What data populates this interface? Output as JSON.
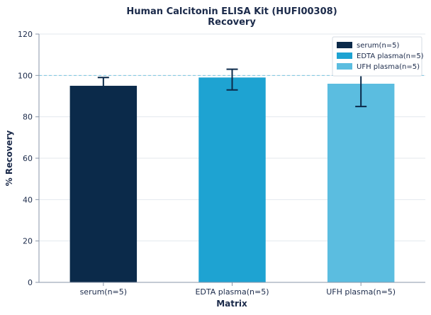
{
  "chart_data": {
    "type": "bar",
    "title": "Human Calcitonin ELISA Kit (HUFI00308)",
    "subtitle": "Recovery",
    "xlabel": "Matrix",
    "ylabel": "% Recovery",
    "ylim": [
      0,
      120
    ],
    "yticks": [
      0,
      20,
      40,
      60,
      80,
      100,
      120
    ],
    "grid": true,
    "reference_line": 100,
    "legend_position": "top-right",
    "categories": [
      "serum(n=5)",
      "EDTA plasma(n=5)",
      "UFH plasma(n=5)"
    ],
    "values": [
      95,
      99,
      96
    ],
    "error_low": [
      94,
      93,
      85
    ],
    "error_high": [
      99,
      103,
      102
    ],
    "colors": [
      "#0b2a4a",
      "#1ea3d2",
      "#5bbde0"
    ],
    "legend": [
      "serum(n=5)",
      "EDTA plasma(n=5)",
      "UFH plasma(n=5)"
    ]
  }
}
